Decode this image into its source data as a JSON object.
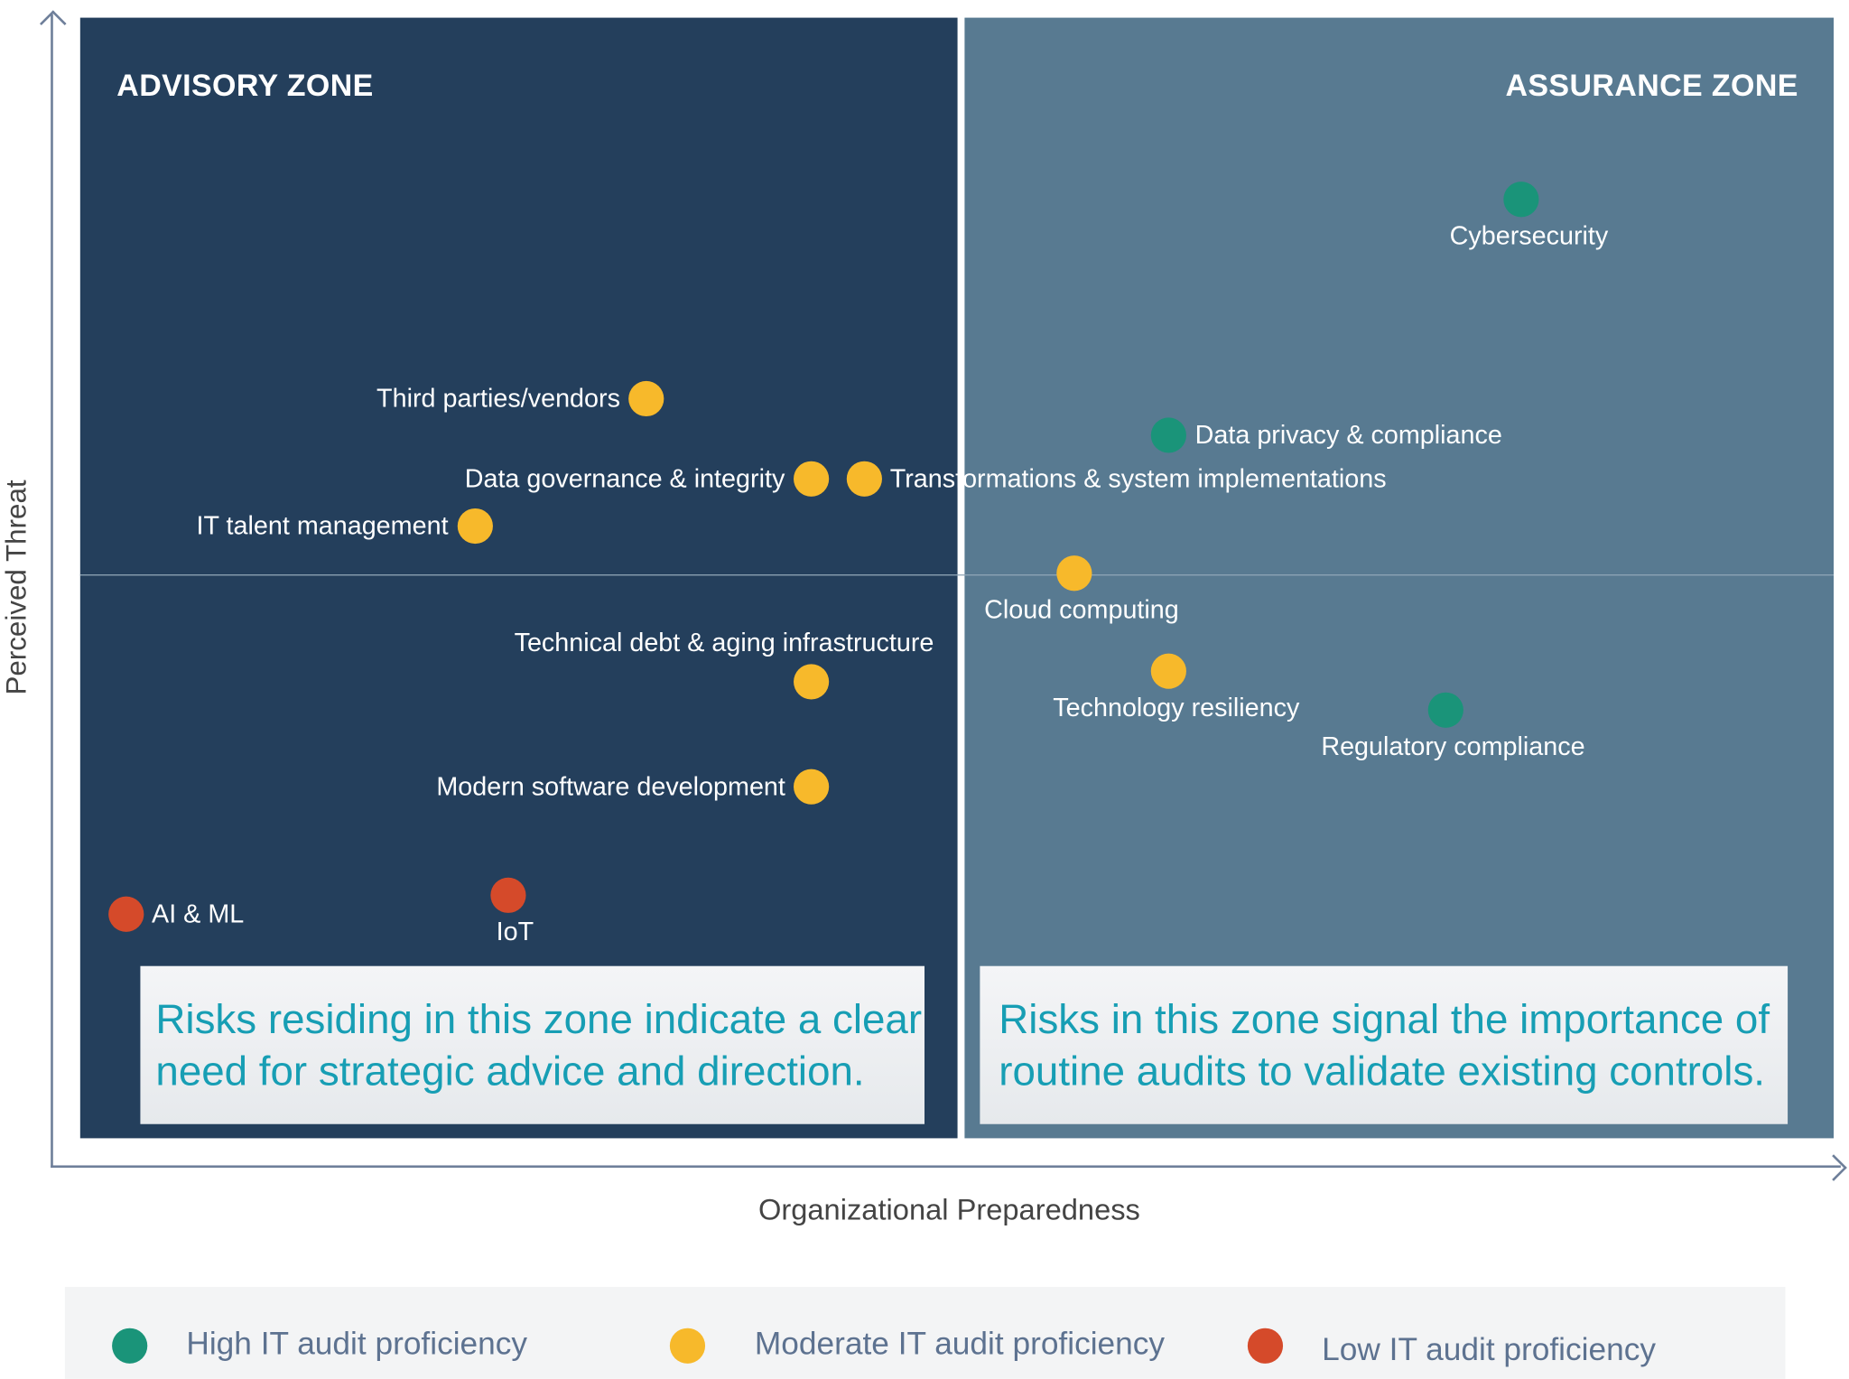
{
  "chart_data": {
    "type": "scatter",
    "title": "",
    "xlabel": "Organizational Preparedness",
    "ylabel": "Perceived Threat",
    "xlim": [
      0,
      100
    ],
    "ylim": [
      0,
      100
    ],
    "grid": false,
    "legend_position": "bottom",
    "zones": [
      {
        "title": "ADVISORY ZONE",
        "note": "Risks residing in this zone indicate a clear need for strategic advice and direction.",
        "color": "#243f5c"
      },
      {
        "title": "ASSURANCE ZONE",
        "note": "Risks in this zone signal the importance of routine audits to validate existing controls.",
        "color": "#587a91"
      }
    ],
    "series": [
      {
        "name": "High IT audit proficiency",
        "color": "#1a9479",
        "points": [
          {
            "label": "Cybersecurity",
            "x": 82.2,
            "y": 83.8,
            "label_side": "below"
          },
          {
            "label": "Data privacy & compliance",
            "x": 62.1,
            "y": 62.7,
            "label_side": "right"
          },
          {
            "label": "Regulatory compliance",
            "x": 77.9,
            "y": 38.2,
            "label_side": "below"
          }
        ]
      },
      {
        "name": "Moderate IT audit proficiency",
        "color": "#f7b92b",
        "points": [
          {
            "label": "Third parties/vendors",
            "x": 32.3,
            "y": 66.0,
            "label_side": "left"
          },
          {
            "label": "Data governance & integrity",
            "x": 41.7,
            "y": 58.8,
            "label_side": "left"
          },
          {
            "label": "Transformations & system implementations",
            "x": 44.7,
            "y": 58.8,
            "label_side": "right"
          },
          {
            "label": "IT talent management",
            "x": 22.5,
            "y": 54.6,
            "label_side": "left"
          },
          {
            "label": "Cloud computing",
            "x": 56.7,
            "y": 50.4,
            "label_side": "below"
          },
          {
            "label": "Technical debt & aging infrastructure",
            "x": 41.7,
            "y": 40.7,
            "label_side": "above"
          },
          {
            "label": "Technology resiliency",
            "x": 62.1,
            "y": 41.7,
            "label_side": "below"
          },
          {
            "label": "Modern software development",
            "x": 41.7,
            "y": 31.4,
            "label_side": "left"
          }
        ]
      },
      {
        "name": "Low IT audit proficiency",
        "color": "#d54a2a",
        "points": [
          {
            "label": "AI & ML",
            "x": 2.6,
            "y": 20.0,
            "label_side": "right"
          },
          {
            "label": "IoT",
            "x": 24.4,
            "y": 21.7,
            "label_side": "below"
          }
        ]
      }
    ]
  }
}
